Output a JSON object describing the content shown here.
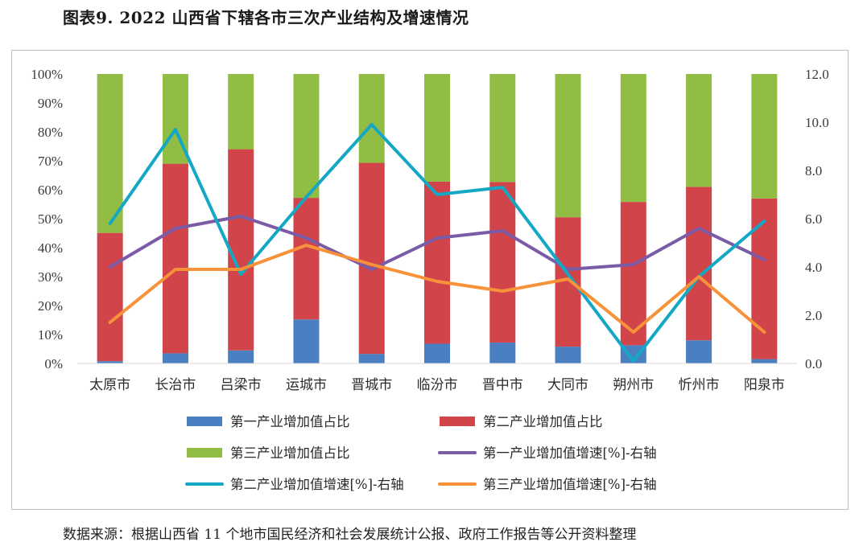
{
  "title": "图表9.   2022 山西省下辖各市三次产业结构及增速情况",
  "source": "数据来源：根据山西省 11 个地市国民经济和社会发展统计公报、政府工作报告等公开资料整理",
  "colors": {
    "primary_share": "#4a7fc1",
    "secondary_share": "#d0444a",
    "tertiary_share": "#92bd45",
    "primary_growth": "#7b5aa6",
    "secondary_growth": "#14a8c4",
    "tertiary_growth": "#f7923a",
    "axis": "#d9d9d9"
  },
  "chart_data": {
    "type": "bar",
    "stacked": true,
    "categories": [
      "太原市",
      "长治市",
      "吕梁市",
      "运城市",
      "晋城市",
      "临汾市",
      "晋中市",
      "大同市",
      "朔州市",
      "忻州市",
      "阳泉市"
    ],
    "left_axis": {
      "ylim": [
        0,
        100
      ],
      "ticks": [
        "0%",
        "10%",
        "20%",
        "30%",
        "40%",
        "50%",
        "60%",
        "70%",
        "80%",
        "90%",
        "100%"
      ]
    },
    "right_axis": {
      "ylim": [
        0,
        12
      ],
      "ticks": [
        "0.0",
        "2.0",
        "4.0",
        "6.0",
        "8.0",
        "10.0",
        "12.0"
      ]
    },
    "bar_series": [
      {
        "name": "第一产业增加值占比",
        "color_key": "primary_share",
        "values": [
          0.8,
          3.5,
          4.5,
          15.2,
          3.3,
          6.8,
          7.2,
          5.8,
          6.3,
          8.0,
          1.5
        ]
      },
      {
        "name": "第二产业增加值占比",
        "color_key": "secondary_share",
        "values": [
          44.3,
          65.5,
          69.5,
          42.0,
          66.0,
          56.0,
          55.5,
          44.7,
          49.5,
          53.0,
          55.5
        ]
      },
      {
        "name": "第三产业增加值占比",
        "color_key": "tertiary_share",
        "values": [
          54.9,
          31.0,
          26.0,
          42.8,
          30.7,
          37.2,
          37.3,
          49.5,
          44.2,
          39.0,
          43.0
        ]
      }
    ],
    "line_series": [
      {
        "name": "第一产业增加值增速[%]-右轴",
        "color_key": "primary_growth",
        "axis": "right",
        "values": [
          4.0,
          5.6,
          6.1,
          5.2,
          3.9,
          5.2,
          5.5,
          3.9,
          4.1,
          5.6,
          4.3
        ]
      },
      {
        "name": "第二产业增加值增速[%]-右轴",
        "color_key": "secondary_growth",
        "axis": "right",
        "values": [
          5.8,
          9.7,
          3.7,
          6.9,
          9.9,
          7.0,
          7.3,
          3.7,
          0.1,
          3.6,
          5.9
        ]
      },
      {
        "name": "第三产业增加值增速[%]-右轴",
        "color_key": "tertiary_growth",
        "axis": "right",
        "values": [
          1.7,
          3.9,
          3.9,
          4.9,
          4.1,
          3.4,
          3.0,
          3.5,
          1.3,
          3.6,
          1.3
        ]
      }
    ],
    "legend_position": "bottom",
    "grid": false
  }
}
